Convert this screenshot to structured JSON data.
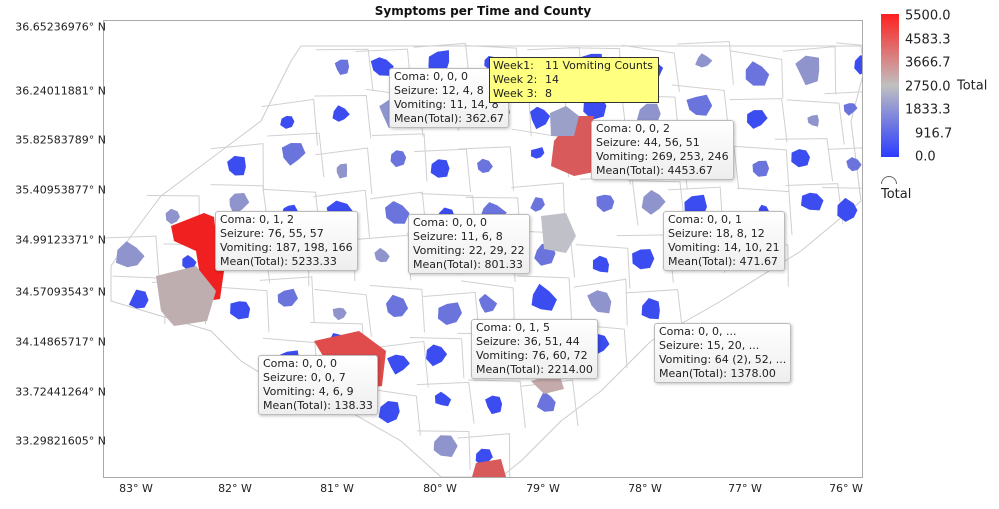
{
  "title": "Symptoms per Time and County",
  "chart_data": {
    "type": "map",
    "title": "Symptoms per Time and County",
    "y_ticks": [
      "36.65236976° N",
      "36.24011881° N",
      "35.82583789° N",
      "35.40953877° N",
      "34.99123371° N",
      "34.57093543° N",
      "34.14865717° N",
      "33.72441264° N",
      "33.29821605° N"
    ],
    "x_ticks": [
      "83° W",
      "82° W",
      "81° W",
      "80° W",
      "79° W",
      "78° W",
      "77° W",
      "76° W"
    ],
    "color_scale": {
      "title": "Total",
      "min": 0,
      "max": 5500,
      "ticks": [
        "5500.0",
        "4583.3",
        "3666.7",
        "2750.0",
        "1833.3",
        "916.7",
        "0.0"
      ],
      "colors": {
        "low": "#2b3cff",
        "mid": "#c0c0c0",
        "high": "#ff2020"
      }
    },
    "legend_footer": "Total",
    "tooltips": [
      {
        "lines": [
          "Coma: 0, 0, 0",
          "Seizure: 12, 4, 8",
          "Vomiting: 11, 14, 8",
          "Mean(Total): 362.67"
        ]
      },
      {
        "lines": [
          "Coma: 0, 0, 2",
          "Seizure: 44, 56, 51",
          "Vomiting: 269, 253, 246",
          "Mean(Total): 4453.67"
        ]
      },
      {
        "lines": [
          "Coma: 0, 1, 2",
          "Seizure: 76, 55, 57",
          "Vomiting: 187, 198, 166",
          "Mean(Total): 5233.33"
        ]
      },
      {
        "lines": [
          "Coma: 0, 0, 0",
          "Seizure: 11, 6, 8",
          "Vomiting: 22, 29, 22",
          "Mean(Total): 801.33"
        ]
      },
      {
        "lines": [
          "Coma: 0, 0, 1",
          "Seizure: 18, 8, 12",
          "Vomiting: 14, 10, 21",
          "Mean(Total): 471.67"
        ]
      },
      {
        "lines": [
          "Coma: 0, 1, 5",
          "Seizure: 36, 51, 44",
          "Vomiting: 76, 60, 72",
          "Mean(Total): 2214.00"
        ]
      },
      {
        "lines": [
          "Coma: 0, 0, ...",
          "Seizure: 15, 20, ...",
          "Vomiting: 64 (2), 52, ...",
          "Mean(Total): 1378.00"
        ]
      },
      {
        "lines": [
          "Coma: 0, 0, 0",
          "Seizure: 0, 0, 7",
          "Vomiting: 4, 6, 9",
          "Mean(Total): 138.33"
        ]
      }
    ],
    "hover_label": {
      "rows": [
        [
          "Week1:",
          "11 Vomiting Counts"
        ],
        [
          "Week 2:",
          "14"
        ],
        [
          "Week 3:",
          "8"
        ]
      ]
    }
  }
}
